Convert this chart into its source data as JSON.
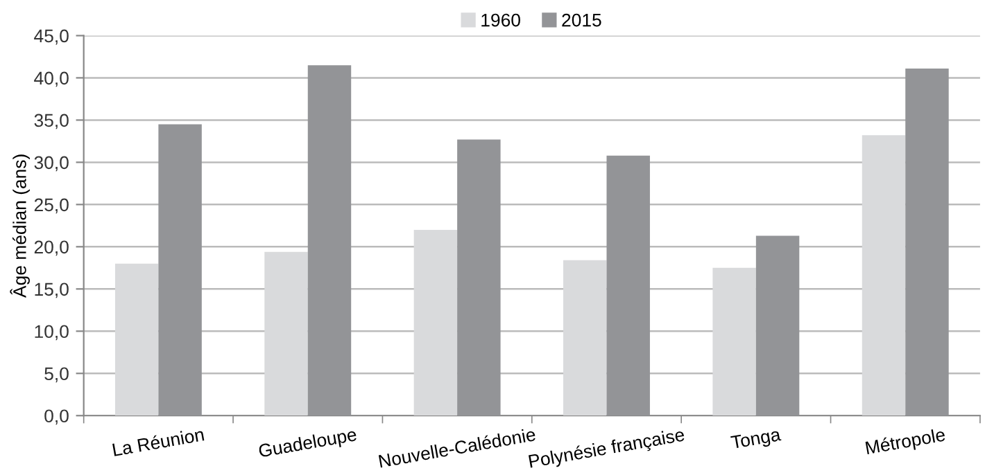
{
  "chart_data": {
    "type": "bar",
    "ylabel": "Âge médian (ans)",
    "categories": [
      "La Réunion",
      "Guadeloupe",
      "Nouvelle-Calédonie",
      "Polynésie française",
      "Tonga",
      "Métropole"
    ],
    "series": [
      {
        "name": "1960",
        "color": "#d9dadc",
        "values": [
          18.0,
          19.4,
          22.0,
          18.4,
          17.5,
          33.2
        ]
      },
      {
        "name": "2015",
        "color": "#939497",
        "values": [
          34.5,
          41.5,
          32.7,
          30.8,
          21.3,
          41.1
        ]
      }
    ],
    "ylim": [
      0,
      45
    ],
    "yticks": [
      {
        "value": 0,
        "label": "0,0"
      },
      {
        "value": 5,
        "label": "5,0"
      },
      {
        "value": 10,
        "label": "10,0"
      },
      {
        "value": 15,
        "label": "15,0"
      },
      {
        "value": 20,
        "label": "20,0"
      },
      {
        "value": 25,
        "label": "25,0"
      },
      {
        "value": 30,
        "label": "30,0"
      },
      {
        "value": 35,
        "label": "35,0"
      },
      {
        "value": 40,
        "label": "40,0"
      },
      {
        "value": 45,
        "label": "45,0"
      }
    ],
    "grid": "y",
    "legend": "top"
  }
}
